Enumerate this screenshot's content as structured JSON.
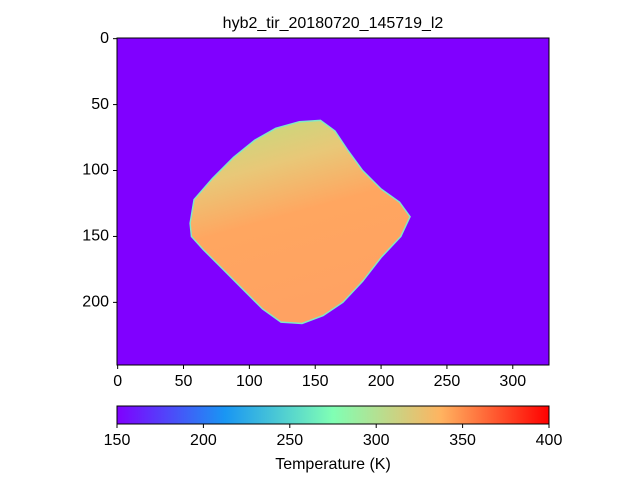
{
  "chart_data": {
    "type": "image",
    "title": "hyb2_tir_20180720_145719_l2",
    "xlim": [
      -0.5,
      327.5
    ],
    "ylim": [
      247.5,
      -0.5
    ],
    "xticks": [
      0,
      50,
      100,
      150,
      200,
      250,
      300
    ],
    "yticks": [
      0,
      50,
      100,
      150,
      200
    ],
    "colormap": "rainbow",
    "colorbar": {
      "label": "Temperature (K)",
      "clim": [
        150,
        400
      ],
      "ticks": [
        150,
        200,
        250,
        300,
        350,
        400
      ]
    }
  }
}
